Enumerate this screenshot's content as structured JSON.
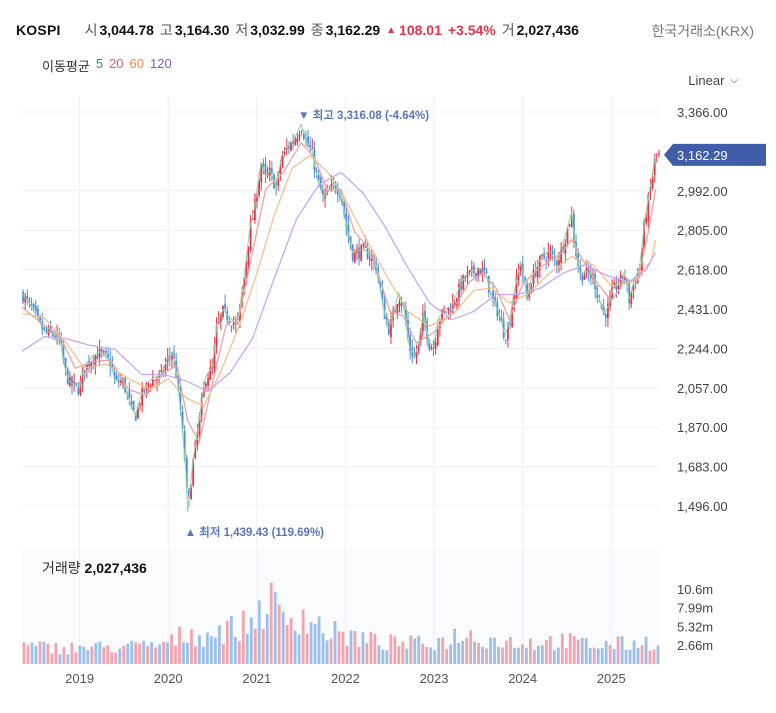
{
  "header": {
    "ticker": "KOSPI",
    "open_label": "시",
    "open_value": "3,044.78",
    "high_label": "고",
    "high_value": "3,164.30",
    "low_label": "저",
    "low_value": "3,032.99",
    "close_label": "종",
    "close_value": "3,162.29",
    "change": "108.01",
    "change_pct": "+3.54%",
    "volume_label": "거",
    "volume_value": "2,027,436",
    "exchange": "한국거래소(KRX)"
  },
  "moving_average": {
    "label": "이동평균",
    "periods": [
      "5",
      "20",
      "60",
      "120"
    ],
    "colors": [
      "#2e9f4f",
      "#e8586e",
      "#f08a3c",
      "#7b5ae0"
    ]
  },
  "scale_selector": {
    "label": "Linear",
    "icon": "chevron-down-icon"
  },
  "volume_panel": {
    "label": "거래량",
    "value": "2,027,436"
  },
  "colors": {
    "up": "#e5334b",
    "down": "#4a8fd8",
    "price_badge": "#3f5da8",
    "annotation": "#5b77b4",
    "grid": "#eef0f4"
  },
  "chart_data": {
    "type": "candlestick",
    "price_axis": {
      "ticks": [
        "3,366.00",
        "2,992.00",
        "2,805.00",
        "2,618.00",
        "2,431.00",
        "2,244.00",
        "2,057.00",
        "1,870.00",
        "1,683.00",
        "1,496.00"
      ],
      "tick_values": [
        3366,
        2992,
        2805,
        2618,
        2431,
        2244,
        2057,
        1870,
        1683,
        1496
      ],
      "range": [
        1420,
        3420
      ],
      "current_price_label": "3,162.29",
      "current_price": 3162.29
    },
    "time_axis": {
      "labels": [
        "2019",
        "2020",
        "2021",
        "2022",
        "2023",
        "2024",
        "2025"
      ],
      "label_times": [
        2019.0,
        2020.0,
        2021.0,
        2022.0,
        2023.0,
        2024.0,
        2025.0
      ],
      "range": [
        2018.35,
        2025.55
      ]
    },
    "annotations": {
      "max_label": "▼ 최고 3,316.08 (-4.64%)",
      "max_value": 3316.08,
      "max_time": 2021.5,
      "min_label": "▲ 최저 1,439.43 (119.69%)",
      "min_value": 1439.43,
      "min_time": 2020.22
    },
    "price_path": [
      [
        2018.35,
        2500
      ],
      [
        2018.45,
        2440
      ],
      [
        2018.55,
        2360
      ],
      [
        2018.6,
        2320
      ],
      [
        2018.7,
        2310
      ],
      [
        2018.78,
        2280
      ],
      [
        2018.83,
        2150
      ],
      [
        2018.88,
        2080
      ],
      [
        2018.95,
        2060
      ],
      [
        2019.0,
        2050
      ],
      [
        2019.05,
        2150
      ],
      [
        2019.15,
        2200
      ],
      [
        2019.22,
        2220
      ],
      [
        2019.3,
        2200
      ],
      [
        2019.35,
        2170
      ],
      [
        2019.4,
        2080
      ],
      [
        2019.48,
        2090
      ],
      [
        2019.52,
        2050
      ],
      [
        2019.58,
        1960
      ],
      [
        2019.63,
        1920
      ],
      [
        2019.7,
        2020
      ],
      [
        2019.78,
        2080
      ],
      [
        2019.85,
        2100
      ],
      [
        2019.92,
        2110
      ],
      [
        2020.0,
        2200
      ],
      [
        2020.05,
        2220
      ],
      [
        2020.1,
        2100
      ],
      [
        2020.15,
        1900
      ],
      [
        2020.2,
        1650
      ],
      [
        2020.22,
        1460
      ],
      [
        2020.28,
        1700
      ],
      [
        2020.35,
        1900
      ],
      [
        2020.42,
        2100
      ],
      [
        2020.5,
        2150
      ],
      [
        2020.55,
        2350
      ],
      [
        2020.62,
        2420
      ],
      [
        2020.7,
        2380
      ],
      [
        2020.78,
        2350
      ],
      [
        2020.85,
        2550
      ],
      [
        2020.92,
        2800
      ],
      [
        2020.97,
        2900
      ],
      [
        2021.05,
        3120
      ],
      [
        2021.1,
        3050
      ],
      [
        2021.15,
        3080
      ],
      [
        2021.22,
        3000
      ],
      [
        2021.28,
        3150
      ],
      [
        2021.35,
        3200
      ],
      [
        2021.42,
        3230
      ],
      [
        2021.5,
        3300
      ],
      [
        2021.58,
        3200
      ],
      [
        2021.62,
        3180
      ],
      [
        2021.68,
        3050
      ],
      [
        2021.75,
        2950
      ],
      [
        2021.8,
        2980
      ],
      [
        2021.88,
        3020
      ],
      [
        2021.95,
        2980
      ],
      [
        2022.02,
        2800
      ],
      [
        2022.08,
        2690
      ],
      [
        2022.15,
        2700
      ],
      [
        2022.2,
        2710
      ],
      [
        2022.28,
        2680
      ],
      [
        2022.35,
        2630
      ],
      [
        2022.42,
        2450
      ],
      [
        2022.48,
        2330
      ],
      [
        2022.52,
        2360
      ],
      [
        2022.6,
        2500
      ],
      [
        2022.66,
        2430
      ],
      [
        2022.72,
        2250
      ],
      [
        2022.78,
        2200
      ],
      [
        2022.82,
        2250
      ],
      [
        2022.88,
        2400
      ],
      [
        2022.95,
        2260
      ],
      [
        2023.0,
        2250
      ],
      [
        2023.05,
        2380
      ],
      [
        2023.12,
        2420
      ],
      [
        2023.2,
        2440
      ],
      [
        2023.28,
        2520
      ],
      [
        2023.35,
        2580
      ],
      [
        2023.42,
        2600
      ],
      [
        2023.5,
        2620
      ],
      [
        2023.58,
        2600
      ],
      [
        2023.65,
        2480
      ],
      [
        2023.72,
        2420
      ],
      [
        2023.8,
        2300
      ],
      [
        2023.85,
        2360
      ],
      [
        2023.9,
        2500
      ],
      [
        2023.98,
        2650
      ],
      [
        2024.05,
        2480
      ],
      [
        2024.1,
        2570
      ],
      [
        2024.2,
        2660
      ],
      [
        2024.3,
        2700
      ],
      [
        2024.38,
        2650
      ],
      [
        2024.45,
        2720
      ],
      [
        2024.5,
        2800
      ],
      [
        2024.55,
        2880
      ],
      [
        2024.6,
        2700
      ],
      [
        2024.65,
        2590
      ],
      [
        2024.72,
        2600
      ],
      [
        2024.8,
        2580
      ],
      [
        2024.85,
        2490
      ],
      [
        2024.92,
        2400
      ],
      [
        2024.97,
        2440
      ],
      [
        2025.02,
        2520
      ],
      [
        2025.1,
        2560
      ],
      [
        2025.15,
        2600
      ],
      [
        2025.2,
        2470
      ],
      [
        2025.26,
        2560
      ],
      [
        2025.32,
        2620
      ],
      [
        2025.38,
        2850
      ],
      [
        2025.42,
        2950
      ],
      [
        2025.46,
        3050
      ],
      [
        2025.5,
        3162
      ]
    ],
    "moving_averages": [
      {
        "name": "20",
        "points": [
          [
            2018.35,
            2440
          ],
          [
            2018.55,
            2370
          ],
          [
            2018.78,
            2300
          ],
          [
            2018.95,
            2150
          ],
          [
            2019.15,
            2180
          ],
          [
            2019.35,
            2190
          ],
          [
            2019.55,
            2050
          ],
          [
            2019.75,
            2020
          ],
          [
            2019.95,
            2130
          ],
          [
            2020.1,
            2160
          ],
          [
            2020.22,
            1900
          ],
          [
            2020.35,
            1800
          ],
          [
            2020.5,
            2080
          ],
          [
            2020.65,
            2350
          ],
          [
            2020.8,
            2400
          ],
          [
            2020.95,
            2700
          ],
          [
            2021.1,
            3000
          ],
          [
            2021.3,
            3080
          ],
          [
            2021.5,
            3220
          ],
          [
            2021.65,
            3150
          ],
          [
            2021.8,
            2990
          ],
          [
            2021.95,
            3000
          ],
          [
            2022.1,
            2800
          ],
          [
            2022.3,
            2700
          ],
          [
            2022.5,
            2420
          ],
          [
            2022.65,
            2400
          ],
          [
            2022.8,
            2270
          ],
          [
            2023.0,
            2320
          ],
          [
            2023.2,
            2420
          ],
          [
            2023.4,
            2560
          ],
          [
            2023.55,
            2600
          ],
          [
            2023.7,
            2530
          ],
          [
            2023.85,
            2380
          ],
          [
            2024.0,
            2550
          ],
          [
            2024.2,
            2630
          ],
          [
            2024.45,
            2700
          ],
          [
            2024.55,
            2760
          ],
          [
            2024.7,
            2650
          ],
          [
            2024.85,
            2550
          ],
          [
            2025.0,
            2470
          ],
          [
            2025.15,
            2560
          ],
          [
            2025.3,
            2570
          ],
          [
            2025.42,
            2800
          ],
          [
            2025.5,
            3000
          ]
        ]
      },
      {
        "name": "60",
        "points": [
          [
            2018.35,
            2410
          ],
          [
            2018.6,
            2390
          ],
          [
            2018.85,
            2270
          ],
          [
            2019.05,
            2150
          ],
          [
            2019.3,
            2170
          ],
          [
            2019.55,
            2100
          ],
          [
            2019.8,
            2050
          ],
          [
            2020.0,
            2100
          ],
          [
            2020.2,
            2010
          ],
          [
            2020.4,
            1970
          ],
          [
            2020.6,
            2140
          ],
          [
            2020.8,
            2350
          ],
          [
            2021.0,
            2600
          ],
          [
            2021.2,
            2880
          ],
          [
            2021.4,
            3100
          ],
          [
            2021.6,
            3160
          ],
          [
            2021.8,
            3080
          ],
          [
            2022.0,
            2950
          ],
          [
            2022.2,
            2790
          ],
          [
            2022.45,
            2600
          ],
          [
            2022.7,
            2420
          ],
          [
            2022.95,
            2350
          ],
          [
            2023.2,
            2400
          ],
          [
            2023.45,
            2520
          ],
          [
            2023.65,
            2530
          ],
          [
            2023.85,
            2460
          ],
          [
            2024.05,
            2500
          ],
          [
            2024.3,
            2600
          ],
          [
            2024.55,
            2680
          ],
          [
            2024.8,
            2640
          ],
          [
            2025.0,
            2540
          ],
          [
            2025.25,
            2560
          ],
          [
            2025.45,
            2660
          ],
          [
            2025.5,
            2760
          ]
        ]
      },
      {
        "name": "120",
        "points": [
          [
            2018.35,
            2230
          ],
          [
            2018.6,
            2300
          ],
          [
            2018.85,
            2290
          ],
          [
            2019.1,
            2260
          ],
          [
            2019.4,
            2240
          ],
          [
            2019.7,
            2120
          ],
          [
            2019.95,
            2120
          ],
          [
            2020.2,
            2090
          ],
          [
            2020.45,
            2040
          ],
          [
            2020.7,
            2130
          ],
          [
            2020.95,
            2290
          ],
          [
            2021.2,
            2580
          ],
          [
            2021.45,
            2860
          ],
          [
            2021.7,
            3020
          ],
          [
            2021.95,
            3080
          ],
          [
            2022.2,
            2980
          ],
          [
            2022.45,
            2820
          ],
          [
            2022.7,
            2630
          ],
          [
            2022.95,
            2460
          ],
          [
            2023.2,
            2380
          ],
          [
            2023.45,
            2420
          ],
          [
            2023.7,
            2500
          ],
          [
            2023.95,
            2500
          ],
          [
            2024.2,
            2530
          ],
          [
            2024.45,
            2600
          ],
          [
            2024.7,
            2640
          ],
          [
            2024.95,
            2590
          ],
          [
            2025.2,
            2560
          ],
          [
            2025.4,
            2620
          ],
          [
            2025.5,
            2700
          ]
        ]
      }
    ],
    "volume_axis": {
      "ticks": [
        "10.6m",
        "7.99m",
        "5.32m",
        "2.66m"
      ],
      "tick_values": [
        10.6,
        7.99,
        5.32,
        2.66
      ],
      "range": [
        0,
        12.3
      ]
    },
    "volume_profile": [
      [
        2018.35,
        2.6
      ],
      [
        2018.8,
        2.4
      ],
      [
        2019.3,
        2.5
      ],
      [
        2019.7,
        2.6
      ],
      [
        2020.0,
        3.0
      ],
      [
        2020.2,
        4.6
      ],
      [
        2020.4,
        4.2
      ],
      [
        2020.6,
        5.0
      ],
      [
        2020.85,
        5.6
      ],
      [
        2021.0,
        7.2
      ],
      [
        2021.12,
        9.6
      ],
      [
        2021.3,
        6.5
      ],
      [
        2021.5,
        7.5
      ],
      [
        2021.8,
        4.8
      ],
      [
        2022.0,
        4.2
      ],
      [
        2022.4,
        3.2
      ],
      [
        2022.8,
        3.0
      ],
      [
        2023.1,
        3.4
      ],
      [
        2023.3,
        4.5
      ],
      [
        2023.5,
        4.0
      ],
      [
        2023.7,
        3.5
      ],
      [
        2024.0,
        3.2
      ],
      [
        2024.5,
        3.4
      ],
      [
        2024.8,
        2.8
      ],
      [
        2025.2,
        3.0
      ],
      [
        2025.5,
        3.4
      ]
    ]
  }
}
